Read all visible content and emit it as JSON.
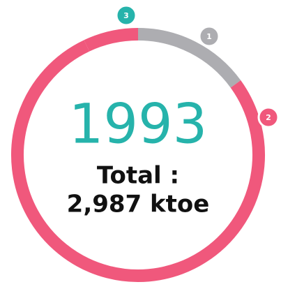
{
  "chart_data": {
    "type": "donut",
    "categories": [
      "1",
      "2",
      "3"
    ],
    "values": [
      15,
      78,
      7
    ],
    "colors": [
      "#adadb1",
      "#f0587c",
      "#f0587c"
    ],
    "badge_colors": [
      "#adadb1",
      "#f0587c",
      "#26b3ab"
    ],
    "center_title": "1993",
    "center_lines": [
      "Total :",
      "2,987 ktoe"
    ]
  }
}
